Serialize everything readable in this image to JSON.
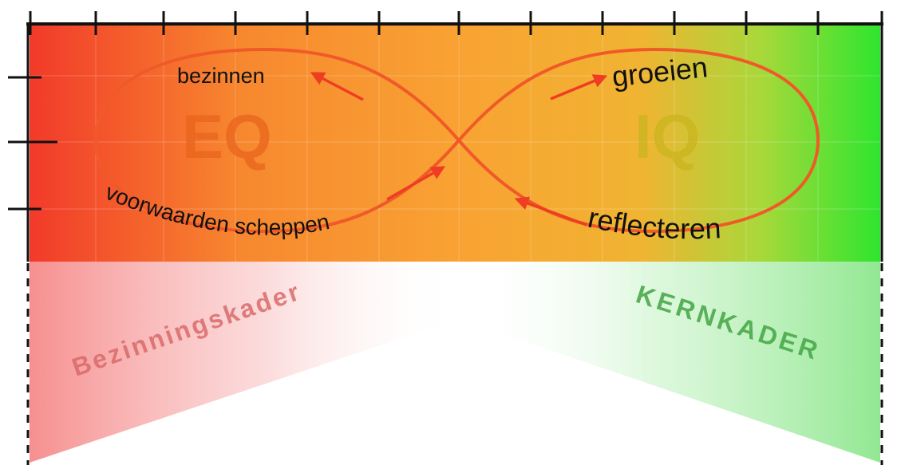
{
  "labels": {
    "eq": "EQ",
    "iq": "IQ",
    "bezinnen": "bezinnen",
    "groeien": "groeien",
    "voorwaarden": "voorwaarden scheppen",
    "reflecteren": "reflecteren",
    "bezinningskader": "Bezinningskader",
    "kernkader": "KERNKADER"
  },
  "colors": {
    "gradient_left": "#f23a2a",
    "gradient_mid": "#f9a233",
    "gradient_right": "#2fe52f",
    "loop_stroke": "#f05a28",
    "arrow": "#ee3d23",
    "eq_text": "#e8641e",
    "iq_text": "#c9b41e",
    "bezinningskader_text": "#d96a6a",
    "kernkader_text": "#4aa84a",
    "frame": "#111111"
  },
  "icons": {
    "arrows": "red-arrow-icon",
    "ticks": "tick-mark"
  }
}
